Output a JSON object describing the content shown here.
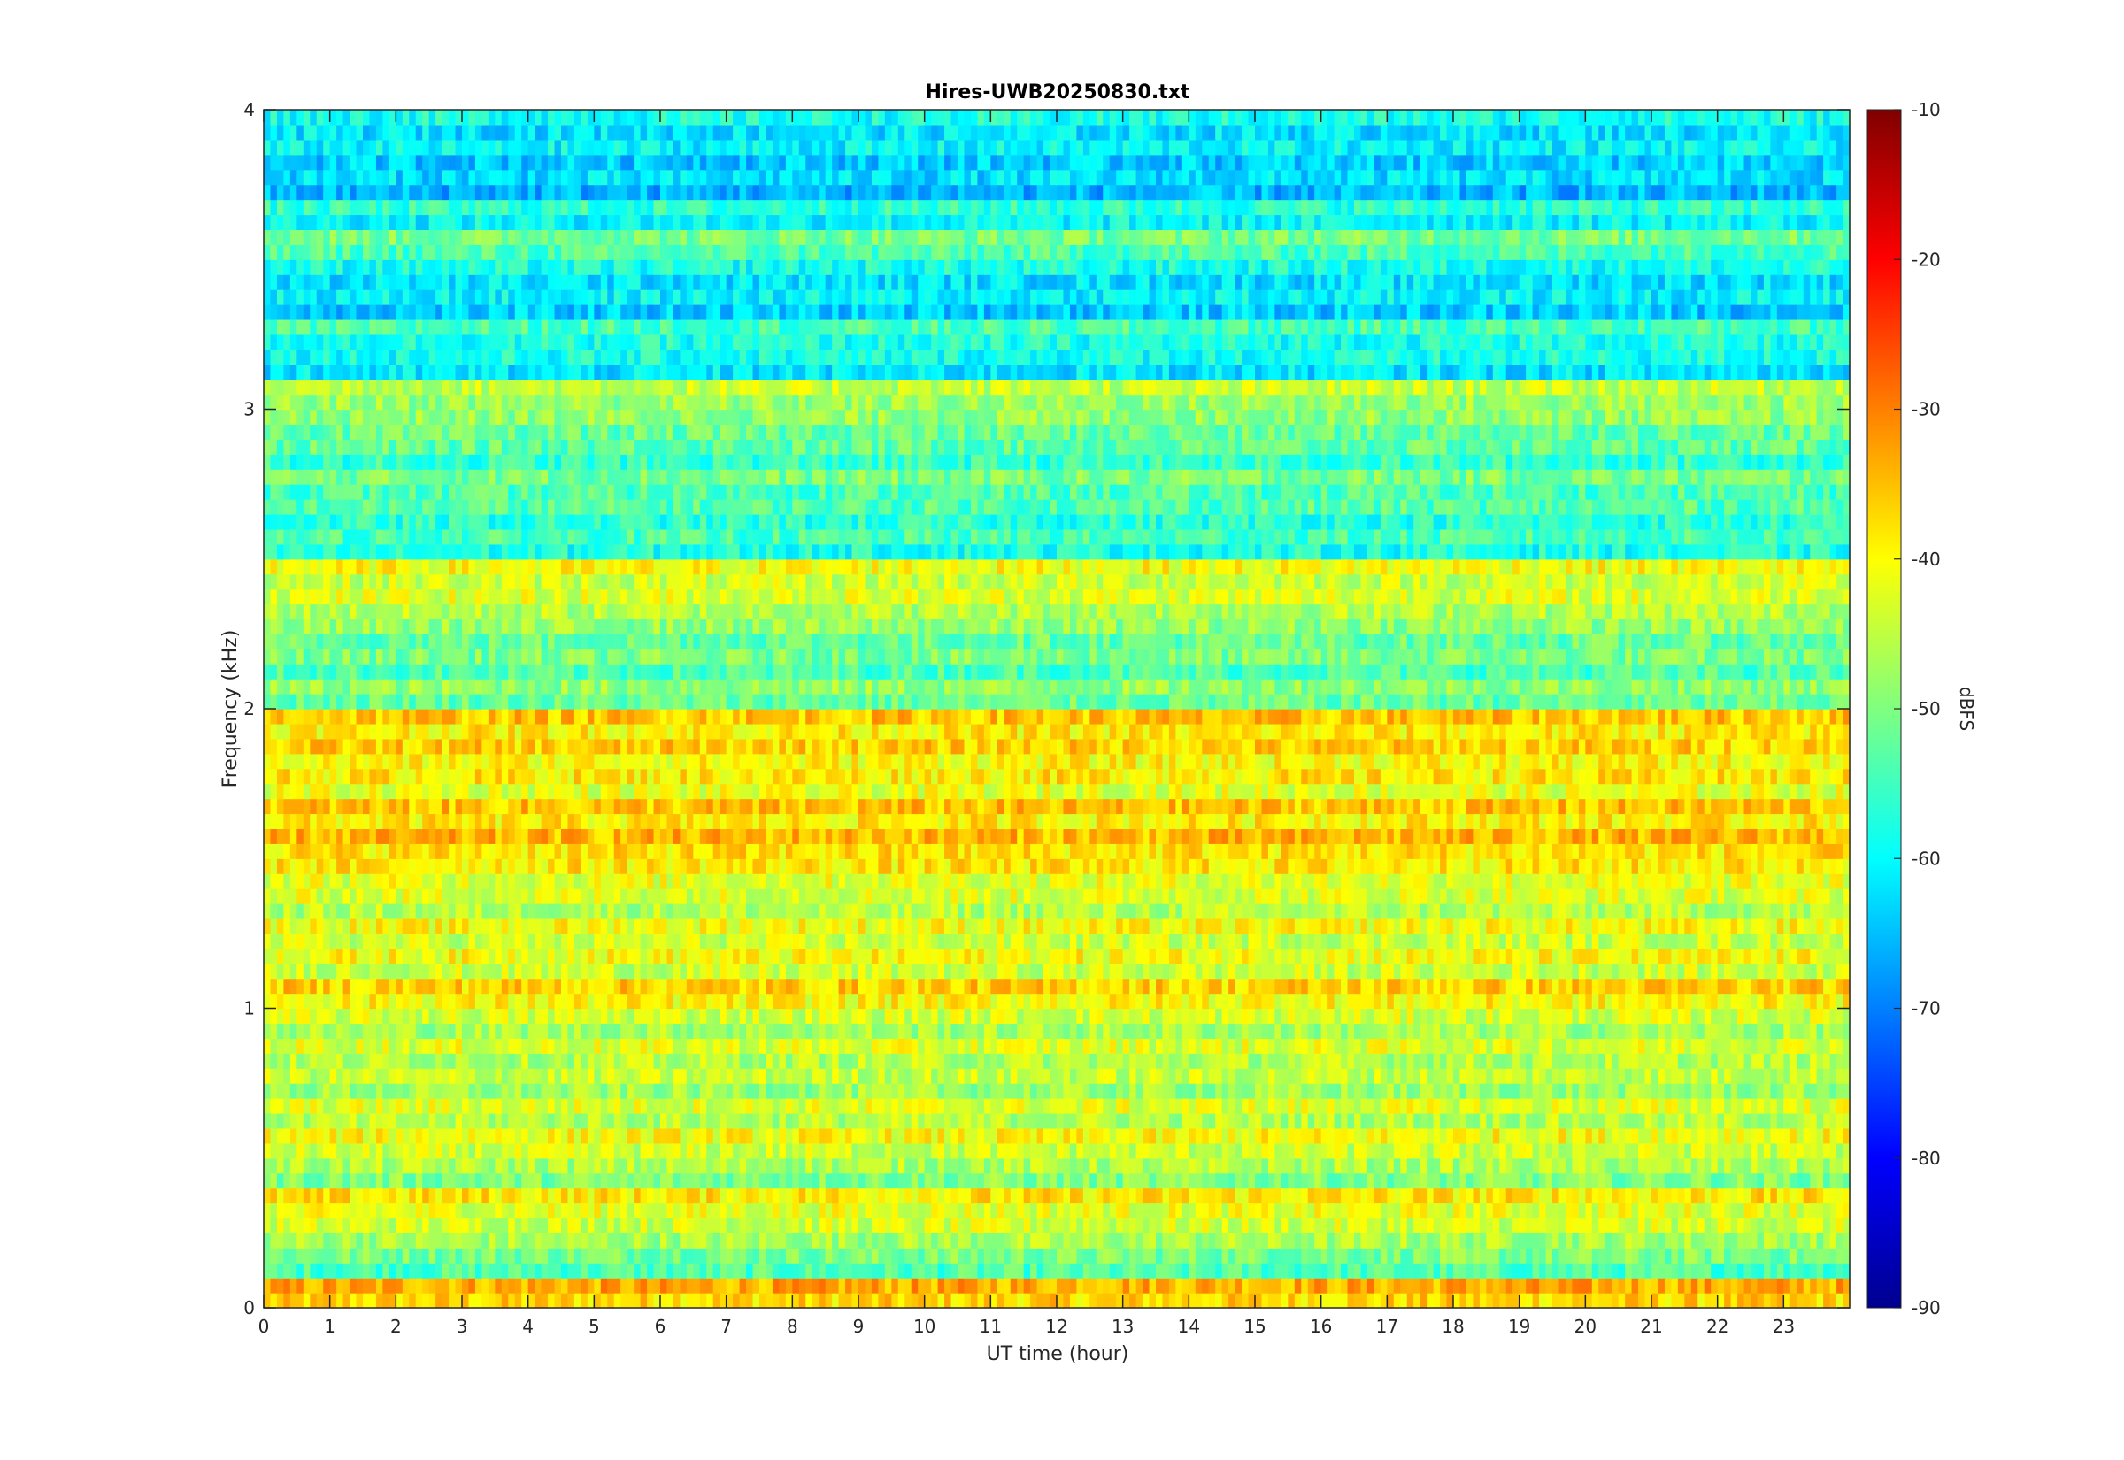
{
  "chart_data": {
    "type": "heatmap",
    "title": "Hires-UWB20250830.txt",
    "xlabel": "UT time (hour)",
    "ylabel": "Frequency (kHz)",
    "xlim": [
      0,
      24
    ],
    "ylim": [
      0,
      4
    ],
    "x_ticks": [
      "0",
      "1",
      "2",
      "3",
      "4",
      "5",
      "6",
      "7",
      "8",
      "9",
      "10",
      "11",
      "12",
      "13",
      "14",
      "15",
      "16",
      "17",
      "18",
      "19",
      "20",
      "21",
      "22",
      "23"
    ],
    "y_ticks": [
      "0",
      "1",
      "2",
      "3",
      "4"
    ],
    "colorbar": {
      "label": "dBFS",
      "range": [
        -90,
        -10
      ],
      "ticks": [
        "-10",
        "-20",
        "-30",
        "-40",
        "-50",
        "-60",
        "-70",
        "-80",
        "-90"
      ],
      "colormap": "jet"
    },
    "band_levels_dbfs": [
      {
        "freq_khz": 0.05,
        "level": -35
      },
      {
        "freq_khz": 0.15,
        "level": -52
      },
      {
        "freq_khz": 0.25,
        "level": -45
      },
      {
        "freq_khz": 0.35,
        "level": -40
      },
      {
        "freq_khz": 0.45,
        "level": -48
      },
      {
        "freq_khz": 0.55,
        "level": -42
      },
      {
        "freq_khz": 0.65,
        "level": -44
      },
      {
        "freq_khz": 0.75,
        "level": -46
      },
      {
        "freq_khz": 0.85,
        "level": -44
      },
      {
        "freq_khz": 0.95,
        "level": -45
      },
      {
        "freq_khz": 1.05,
        "level": -38
      },
      {
        "freq_khz": 1.15,
        "level": -42
      },
      {
        "freq_khz": 1.25,
        "level": -42
      },
      {
        "freq_khz": 1.35,
        "level": -44
      },
      {
        "freq_khz": 1.45,
        "level": -40
      },
      {
        "freq_khz": 1.55,
        "level": -36
      },
      {
        "freq_khz": 1.65,
        "level": -37
      },
      {
        "freq_khz": 1.75,
        "level": -40
      },
      {
        "freq_khz": 1.85,
        "level": -38
      },
      {
        "freq_khz": 1.95,
        "level": -37
      },
      {
        "freq_khz": 2.05,
        "level": -50
      },
      {
        "freq_khz": 2.15,
        "level": -52
      },
      {
        "freq_khz": 2.25,
        "level": -50
      },
      {
        "freq_khz": 2.35,
        "level": -44
      },
      {
        "freq_khz": 2.45,
        "level": -42
      },
      {
        "freq_khz": 2.55,
        "level": -56
      },
      {
        "freq_khz": 2.65,
        "level": -55
      },
      {
        "freq_khz": 2.75,
        "level": -52
      },
      {
        "freq_khz": 2.85,
        "level": -54
      },
      {
        "freq_khz": 2.95,
        "level": -50
      },
      {
        "freq_khz": 3.05,
        "level": -46
      },
      {
        "freq_khz": 3.15,
        "level": -60
      },
      {
        "freq_khz": 3.25,
        "level": -56
      },
      {
        "freq_khz": 3.35,
        "level": -62
      },
      {
        "freq_khz": 3.45,
        "level": -60
      },
      {
        "freq_khz": 3.55,
        "level": -52
      },
      {
        "freq_khz": 3.65,
        "level": -58
      },
      {
        "freq_khz": 3.75,
        "level": -64
      },
      {
        "freq_khz": 3.85,
        "level": -62
      },
      {
        "freq_khz": 3.95,
        "level": -60
      }
    ]
  }
}
